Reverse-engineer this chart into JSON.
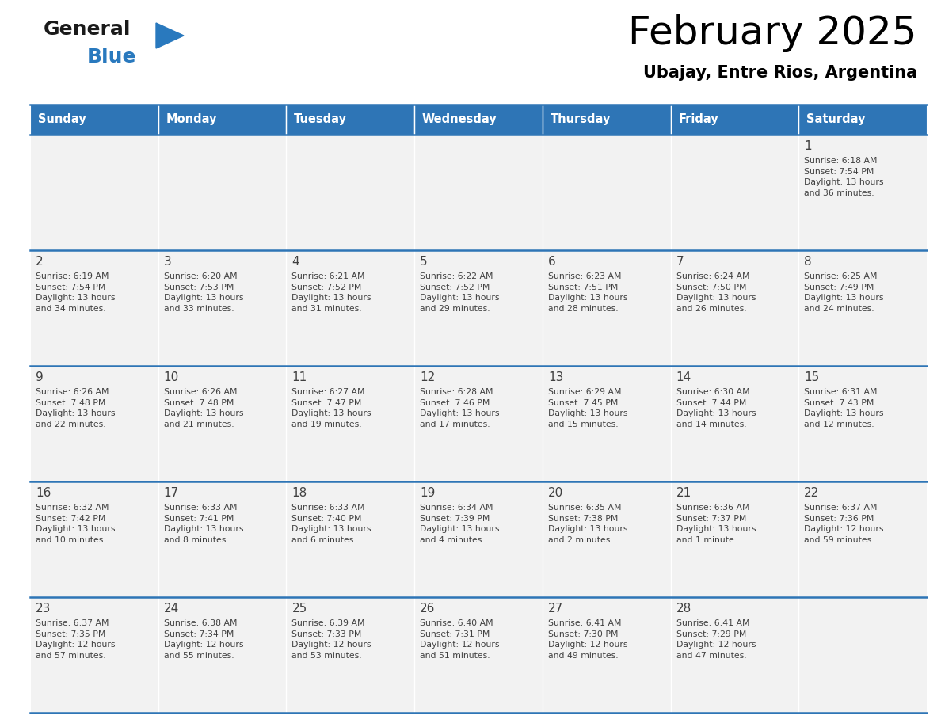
{
  "title": "February 2025",
  "subtitle": "Ubajay, Entre Rios, Argentina",
  "header_bg": "#2E75B6",
  "header_text_color": "#FFFFFF",
  "cell_bg": "#F2F2F2",
  "text_color": "#404040",
  "border_color": "#2E75B6",
  "days_of_week": [
    "Sunday",
    "Monday",
    "Tuesday",
    "Wednesday",
    "Thursday",
    "Friday",
    "Saturday"
  ],
  "weeks": [
    [
      {
        "day": null,
        "info": null
      },
      {
        "day": null,
        "info": null
      },
      {
        "day": null,
        "info": null
      },
      {
        "day": null,
        "info": null
      },
      {
        "day": null,
        "info": null
      },
      {
        "day": null,
        "info": null
      },
      {
        "day": 1,
        "info": "Sunrise: 6:18 AM\nSunset: 7:54 PM\nDaylight: 13 hours\nand 36 minutes."
      }
    ],
    [
      {
        "day": 2,
        "info": "Sunrise: 6:19 AM\nSunset: 7:54 PM\nDaylight: 13 hours\nand 34 minutes."
      },
      {
        "day": 3,
        "info": "Sunrise: 6:20 AM\nSunset: 7:53 PM\nDaylight: 13 hours\nand 33 minutes."
      },
      {
        "day": 4,
        "info": "Sunrise: 6:21 AM\nSunset: 7:52 PM\nDaylight: 13 hours\nand 31 minutes."
      },
      {
        "day": 5,
        "info": "Sunrise: 6:22 AM\nSunset: 7:52 PM\nDaylight: 13 hours\nand 29 minutes."
      },
      {
        "day": 6,
        "info": "Sunrise: 6:23 AM\nSunset: 7:51 PM\nDaylight: 13 hours\nand 28 minutes."
      },
      {
        "day": 7,
        "info": "Sunrise: 6:24 AM\nSunset: 7:50 PM\nDaylight: 13 hours\nand 26 minutes."
      },
      {
        "day": 8,
        "info": "Sunrise: 6:25 AM\nSunset: 7:49 PM\nDaylight: 13 hours\nand 24 minutes."
      }
    ],
    [
      {
        "day": 9,
        "info": "Sunrise: 6:26 AM\nSunset: 7:48 PM\nDaylight: 13 hours\nand 22 minutes."
      },
      {
        "day": 10,
        "info": "Sunrise: 6:26 AM\nSunset: 7:48 PM\nDaylight: 13 hours\nand 21 minutes."
      },
      {
        "day": 11,
        "info": "Sunrise: 6:27 AM\nSunset: 7:47 PM\nDaylight: 13 hours\nand 19 minutes."
      },
      {
        "day": 12,
        "info": "Sunrise: 6:28 AM\nSunset: 7:46 PM\nDaylight: 13 hours\nand 17 minutes."
      },
      {
        "day": 13,
        "info": "Sunrise: 6:29 AM\nSunset: 7:45 PM\nDaylight: 13 hours\nand 15 minutes."
      },
      {
        "day": 14,
        "info": "Sunrise: 6:30 AM\nSunset: 7:44 PM\nDaylight: 13 hours\nand 14 minutes."
      },
      {
        "day": 15,
        "info": "Sunrise: 6:31 AM\nSunset: 7:43 PM\nDaylight: 13 hours\nand 12 minutes."
      }
    ],
    [
      {
        "day": 16,
        "info": "Sunrise: 6:32 AM\nSunset: 7:42 PM\nDaylight: 13 hours\nand 10 minutes."
      },
      {
        "day": 17,
        "info": "Sunrise: 6:33 AM\nSunset: 7:41 PM\nDaylight: 13 hours\nand 8 minutes."
      },
      {
        "day": 18,
        "info": "Sunrise: 6:33 AM\nSunset: 7:40 PM\nDaylight: 13 hours\nand 6 minutes."
      },
      {
        "day": 19,
        "info": "Sunrise: 6:34 AM\nSunset: 7:39 PM\nDaylight: 13 hours\nand 4 minutes."
      },
      {
        "day": 20,
        "info": "Sunrise: 6:35 AM\nSunset: 7:38 PM\nDaylight: 13 hours\nand 2 minutes."
      },
      {
        "day": 21,
        "info": "Sunrise: 6:36 AM\nSunset: 7:37 PM\nDaylight: 13 hours\nand 1 minute."
      },
      {
        "day": 22,
        "info": "Sunrise: 6:37 AM\nSunset: 7:36 PM\nDaylight: 12 hours\nand 59 minutes."
      }
    ],
    [
      {
        "day": 23,
        "info": "Sunrise: 6:37 AM\nSunset: 7:35 PM\nDaylight: 12 hours\nand 57 minutes."
      },
      {
        "day": 24,
        "info": "Sunrise: 6:38 AM\nSunset: 7:34 PM\nDaylight: 12 hours\nand 55 minutes."
      },
      {
        "day": 25,
        "info": "Sunrise: 6:39 AM\nSunset: 7:33 PM\nDaylight: 12 hours\nand 53 minutes."
      },
      {
        "day": 26,
        "info": "Sunrise: 6:40 AM\nSunset: 7:31 PM\nDaylight: 12 hours\nand 51 minutes."
      },
      {
        "day": 27,
        "info": "Sunrise: 6:41 AM\nSunset: 7:30 PM\nDaylight: 12 hours\nand 49 minutes."
      },
      {
        "day": 28,
        "info": "Sunrise: 6:41 AM\nSunset: 7:29 PM\nDaylight: 12 hours\nand 47 minutes."
      },
      {
        "day": null,
        "info": null
      }
    ]
  ],
  "logo_color_general": "#1a1a1a",
  "logo_color_blue": "#2979BE",
  "logo_triangle_color": "#2979BE",
  "fig_width": 11.88,
  "fig_height": 9.18
}
